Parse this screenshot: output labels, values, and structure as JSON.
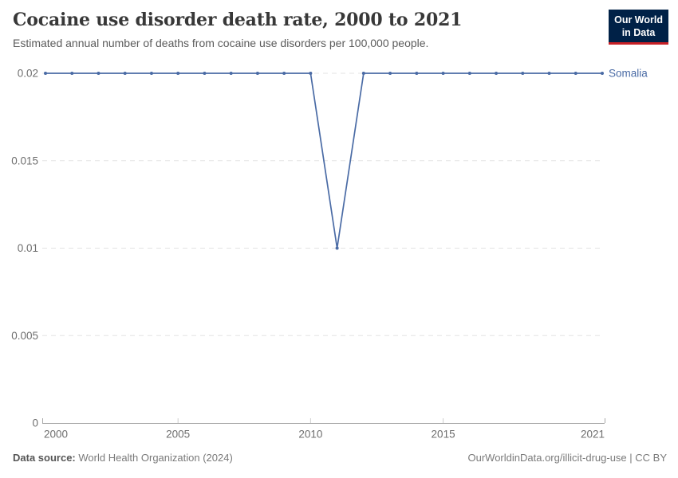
{
  "header": {
    "title": "Cocaine use disorder death rate, 2000 to 2021",
    "subtitle": "Estimated annual number of deaths from cocaine use disorders per 100,000 people.",
    "logo": {
      "line1": "Our World",
      "line2": "in Data"
    }
  },
  "chart_data": {
    "type": "line",
    "title": "Cocaine use disorder death rate, 2000 to 2021",
    "xlabel": "",
    "ylabel": "",
    "xlim": [
      2000,
      2021
    ],
    "ylim": [
      0,
      0.02
    ],
    "grid": "dashed-horizontal",
    "legend_position": "right-of-line-end",
    "x_ticks": [
      {
        "value": 2000,
        "label": "2000"
      },
      {
        "value": 2005,
        "label": "2005"
      },
      {
        "value": 2010,
        "label": "2010"
      },
      {
        "value": 2015,
        "label": "2015"
      },
      {
        "value": 2021,
        "label": "2021"
      }
    ],
    "y_ticks": [
      {
        "value": 0,
        "label": "0"
      },
      {
        "value": 0.005,
        "label": "0.005"
      },
      {
        "value": 0.01,
        "label": "0.01"
      },
      {
        "value": 0.015,
        "label": "0.015"
      },
      {
        "value": 0.02,
        "label": "0.02"
      }
    ],
    "series": [
      {
        "name": "Somalia",
        "color": "#4a6ba5",
        "x": [
          2000,
          2001,
          2002,
          2003,
          2004,
          2005,
          2006,
          2007,
          2008,
          2009,
          2010,
          2011,
          2012,
          2013,
          2014,
          2015,
          2016,
          2017,
          2018,
          2019,
          2020,
          2021
        ],
        "values": [
          0.02,
          0.02,
          0.02,
          0.02,
          0.02,
          0.02,
          0.02,
          0.02,
          0.02,
          0.02,
          0.02,
          0.01,
          0.02,
          0.02,
          0.02,
          0.02,
          0.02,
          0.02,
          0.02,
          0.02,
          0.02,
          0.02
        ]
      }
    ]
  },
  "footer": {
    "source_label": "Data source:",
    "source_value": "World Health Organization (2024)",
    "license": "OurWorldinData.org/illicit-drug-use | CC BY"
  },
  "colors": {
    "line": "#4a6ba5",
    "grid": "#e3e3e3",
    "axis": "#a8a8a8",
    "mid_tick": "#cfcfcf",
    "tick_label": "#6e6e6e",
    "title": "#383838",
    "subtitle": "#5b5b5b",
    "logo_bg": "#002147",
    "logo_red": "#c72026"
  }
}
